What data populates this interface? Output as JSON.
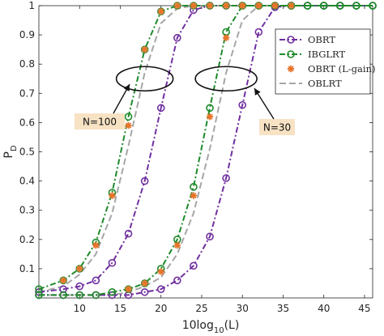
{
  "chart_data": {
    "type": "line",
    "xlabel_main": "10log",
    "xlabel_sub": "10",
    "xlabel_tail": "(L)",
    "ylabel_main": "P",
    "ylabel_sub": "D",
    "xlim": [
      5,
      46
    ],
    "ylim": [
      0,
      1
    ],
    "xticks": [
      10,
      15,
      20,
      25,
      30,
      35,
      40,
      45
    ],
    "yticks": [
      0.1,
      0.2,
      0.3,
      0.4,
      0.5,
      0.6,
      0.7,
      0.8,
      0.9,
      1
    ],
    "legend_position": "top-right",
    "colors": {
      "OBRT": "#7030a0",
      "IBGLRT": "#1e8a2a",
      "OBRT_Lgain": "#e8742a",
      "OBLRT": "#a6a6a6",
      "annotation_box": "#f7e2c4"
    },
    "series": [
      {
        "name": "OBRT",
        "group": "N=100",
        "x": [
          5,
          8,
          10,
          12,
          14,
          16,
          18,
          20,
          22,
          24,
          26,
          28,
          30,
          32,
          34,
          36,
          38,
          40,
          42,
          44,
          46
        ],
        "y": [
          0.02,
          0.03,
          0.04,
          0.06,
          0.12,
          0.22,
          0.4,
          0.65,
          0.89,
          0.985,
          1,
          1,
          1,
          1,
          1,
          1,
          1,
          1,
          1,
          1,
          1
        ]
      },
      {
        "name": "IBGLRT",
        "group": "N=100",
        "x": [
          5,
          8,
          10,
          12,
          14,
          16,
          18,
          20,
          22,
          24,
          26,
          28,
          30,
          32,
          34,
          36,
          38,
          40,
          42,
          44,
          46
        ],
        "y": [
          0.03,
          0.06,
          0.1,
          0.19,
          0.36,
          0.62,
          0.85,
          0.98,
          1,
          1,
          1,
          1,
          1,
          1,
          1,
          1,
          1,
          1,
          1,
          1,
          1
        ]
      },
      {
        "name": "OBRT (L-gain)",
        "group": "N=100",
        "x": [
          8,
          10,
          12,
          14,
          16,
          18,
          20,
          22,
          24,
          26,
          28,
          30,
          32,
          34,
          36
        ],
        "y": [
          0.06,
          0.1,
          0.18,
          0.35,
          0.59,
          0.85,
          0.98,
          1,
          1,
          1,
          1,
          1,
          1,
          1,
          1
        ]
      },
      {
        "name": "OBLRT",
        "group": "N=100",
        "x": [
          5,
          8,
          10,
          12,
          14,
          16,
          18,
          20,
          22,
          24,
          26,
          28,
          30,
          32,
          34
        ],
        "y": [
          0.02,
          0.04,
          0.08,
          0.15,
          0.29,
          0.52,
          0.77,
          0.94,
          0.99,
          1,
          1,
          1,
          1,
          1,
          1
        ]
      },
      {
        "name": "OBRT",
        "group": "N=30",
        "x": [
          5,
          8,
          10,
          12,
          14,
          16,
          18,
          20,
          22,
          24,
          26,
          28,
          30,
          32,
          34,
          36,
          38,
          40,
          42,
          44,
          46
        ],
        "y": [
          0.01,
          0.01,
          0.01,
          0.01,
          0.01,
          0.01,
          0.02,
          0.03,
          0.06,
          0.11,
          0.21,
          0.41,
          0.66,
          0.91,
          0.995,
          1,
          1,
          1,
          1,
          1,
          1
        ]
      },
      {
        "name": "IBGLRT",
        "group": "N=30",
        "x": [
          5,
          8,
          10,
          12,
          14,
          16,
          18,
          20,
          22,
          24,
          26,
          28,
          30,
          32,
          34,
          36,
          38,
          40,
          42,
          44,
          46
        ],
        "y": [
          0.01,
          0.01,
          0.01,
          0.01,
          0.02,
          0.03,
          0.05,
          0.1,
          0.2,
          0.38,
          0.65,
          0.91,
          1,
          1,
          1,
          1,
          1,
          1,
          1,
          1,
          1
        ]
      },
      {
        "name": "OBRT (L-gain)",
        "group": "N=30",
        "x": [
          16,
          18,
          20,
          22,
          24,
          26,
          28,
          30,
          32,
          34
        ],
        "y": [
          0.03,
          0.05,
          0.09,
          0.18,
          0.35,
          0.62,
          0.89,
          1,
          1,
          1
        ]
      },
      {
        "name": "OBLRT",
        "group": "N=30",
        "x": [
          5,
          8,
          10,
          12,
          14,
          16,
          18,
          20,
          22,
          24,
          26,
          28,
          30,
          32,
          34
        ],
        "y": [
          0.01,
          0.01,
          0.01,
          0.01,
          0.01,
          0.02,
          0.04,
          0.07,
          0.15,
          0.29,
          0.51,
          0.77,
          0.95,
          1,
          1
        ]
      }
    ],
    "legend": [
      "OBRT",
      "IBGLRT",
      "OBRT (L-gain)",
      "OBLRT"
    ],
    "annotations": [
      {
        "text": "N=100",
        "target_x": 18,
        "target_y": 0.75
      },
      {
        "text": "N=30",
        "target_x": 28,
        "target_y": 0.75
      }
    ]
  }
}
